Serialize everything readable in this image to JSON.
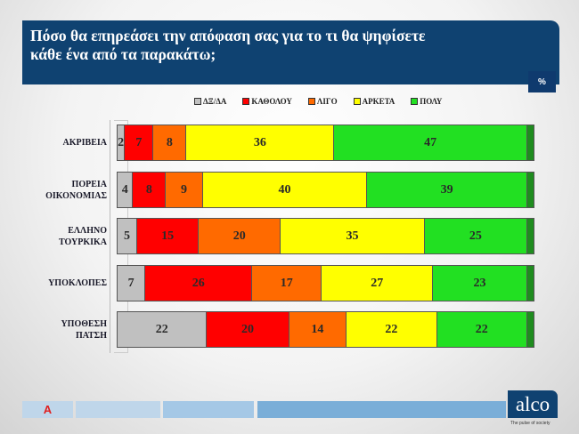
{
  "header": {
    "title_line1": "Πόσο θα επηρεάσει την απόφαση σας για το τι θα ψηφίσετε",
    "title_line2": "κάθε ένα από τα παρακάτω;",
    "unit": "%"
  },
  "footer": {
    "brand": "alco",
    "tagline": "The pulse of society",
    "news_logo": "A"
  },
  "chart_data": {
    "type": "bar",
    "orientation": "horizontal",
    "stacked": true,
    "xlim": [
      0,
      100
    ],
    "legend_position": "top",
    "categories": [
      "ΑΚΡΙΒΕΙΑ",
      "ΠΟΡΕΙΑ ΟΙΚΟΝΟΜΙΑΣ",
      "ΕΛΛΗΝΟ ΤΟΥΡΚΙΚΑ",
      "ΥΠΟΚΛΟΠΕΣ",
      "ΥΠΟΘΕΣΗ ΠΑΤΣΗ"
    ],
    "series": [
      {
        "name": "ΔΞ/ΔΑ",
        "color": "#c0c0c0",
        "values": [
          2,
          4,
          5,
          7,
          22
        ]
      },
      {
        "name": "ΚΑΘΟΛΟΥ",
        "color": "#ff0000",
        "values": [
          7,
          8,
          15,
          26,
          20
        ]
      },
      {
        "name": "ΛΙΓΟ",
        "color": "#ff6a00",
        "values": [
          8,
          9,
          20,
          17,
          14
        ]
      },
      {
        "name": "ΑΡΚΕΤΑ",
        "color": "#ffff00",
        "values": [
          36,
          40,
          35,
          27,
          22
        ]
      },
      {
        "name": "ΠΟΛΥ",
        "color": "#22e022",
        "values": [
          47,
          39,
          25,
          23,
          22
        ]
      }
    ]
  }
}
